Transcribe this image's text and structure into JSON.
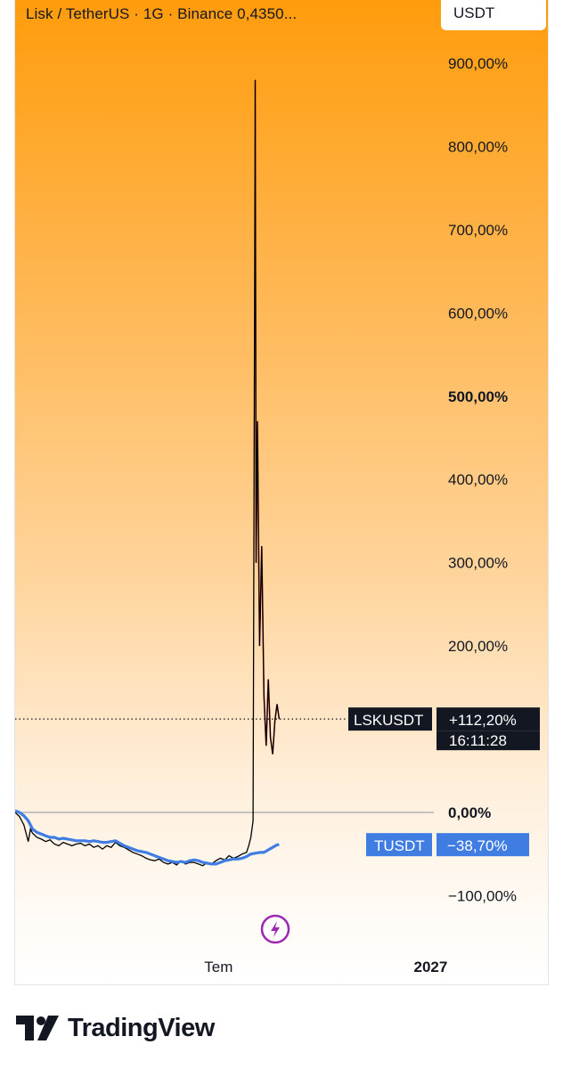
{
  "header": {
    "symbol_title": "Lisk / TetherUS · 1G · Binance  0,4350...",
    "currency": "USDT"
  },
  "footer": {
    "brand": "TradingView"
  },
  "chart_data": {
    "type": "line",
    "title": "Lisk / TetherUS · 1G · Binance",
    "y_unit": "%",
    "ylim": [
      -140,
      940
    ],
    "y_ticks": [
      {
        "value": 900,
        "label": "900,00%"
      },
      {
        "value": 800,
        "label": "800,00%"
      },
      {
        "value": 700,
        "label": "700,00%"
      },
      {
        "value": 600,
        "label": "600,00%"
      },
      {
        "value": 500,
        "label": "500,00%",
        "bold": true
      },
      {
        "value": 400,
        "label": "400,00%"
      },
      {
        "value": 300,
        "label": "300,00%"
      },
      {
        "value": 200,
        "label": "200,00%"
      },
      {
        "value": 0,
        "label": "0,00%",
        "bold": true
      },
      {
        "value": -100,
        "label": "−100,00%"
      }
    ],
    "x_ticks": [
      {
        "value": 0.47,
        "label": "Tem"
      },
      {
        "value": 0.95,
        "label": "2027",
        "bold": true
      }
    ],
    "zero_line": 0,
    "grid": false,
    "series": [
      {
        "name": "LSKUSDT",
        "color": "#000000",
        "last_value_label": "+112,20%",
        "time_label": "16:11:28",
        "last_value": 112.2,
        "points": [
          [
            0.0,
            0
          ],
          [
            0.01,
            -5
          ],
          [
            0.02,
            -15
          ],
          [
            0.03,
            -35
          ],
          [
            0.035,
            -20
          ],
          [
            0.04,
            -25
          ],
          [
            0.05,
            -30
          ],
          [
            0.06,
            -32
          ],
          [
            0.07,
            -35
          ],
          [
            0.08,
            -33
          ],
          [
            0.09,
            -38
          ],
          [
            0.1,
            -40
          ],
          [
            0.11,
            -36
          ],
          [
            0.12,
            -38
          ],
          [
            0.13,
            -40
          ],
          [
            0.14,
            -38
          ],
          [
            0.15,
            -37
          ],
          [
            0.16,
            -40
          ],
          [
            0.17,
            -38
          ],
          [
            0.18,
            -42
          ],
          [
            0.19,
            -40
          ],
          [
            0.2,
            -44
          ],
          [
            0.21,
            -40
          ],
          [
            0.22,
            -42
          ],
          [
            0.23,
            -36
          ],
          [
            0.24,
            -40
          ],
          [
            0.25,
            -42
          ],
          [
            0.26,
            -45
          ],
          [
            0.27,
            -48
          ],
          [
            0.28,
            -50
          ],
          [
            0.29,
            -52
          ],
          [
            0.3,
            -55
          ],
          [
            0.31,
            -57
          ],
          [
            0.32,
            -58
          ],
          [
            0.33,
            -56
          ],
          [
            0.34,
            -60
          ],
          [
            0.35,
            -62
          ],
          [
            0.36,
            -60
          ],
          [
            0.37,
            -63
          ],
          [
            0.38,
            -58
          ],
          [
            0.39,
            -62
          ],
          [
            0.4,
            -60
          ],
          [
            0.41,
            -60
          ],
          [
            0.42,
            -62
          ],
          [
            0.43,
            -64
          ],
          [
            0.44,
            -60
          ],
          [
            0.45,
            -62
          ],
          [
            0.46,
            -58
          ],
          [
            0.47,
            -55
          ],
          [
            0.48,
            -57
          ],
          [
            0.49,
            -52
          ],
          [
            0.5,
            -55
          ],
          [
            0.51,
            -53
          ],
          [
            0.52,
            -50
          ],
          [
            0.53,
            -48
          ],
          [
            0.535,
            -40
          ],
          [
            0.54,
            -30
          ],
          [
            0.545,
            -10
          ],
          [
            0.55,
            880
          ],
          [
            0.552,
            300
          ],
          [
            0.555,
            470
          ],
          [
            0.56,
            200
          ],
          [
            0.565,
            320
          ],
          [
            0.57,
            140
          ],
          [
            0.575,
            80
          ],
          [
            0.58,
            160
          ],
          [
            0.585,
            90
          ],
          [
            0.59,
            70
          ],
          [
            0.595,
            110
          ],
          [
            0.6,
            130
          ],
          [
            0.605,
            112.2
          ]
        ]
      },
      {
        "name": "TUSDT",
        "color": "#3f7de3",
        "last_value_label": "−38,70%",
        "last_value": -38.7,
        "points": [
          [
            0.0,
            2
          ],
          [
            0.01,
            0
          ],
          [
            0.02,
            -4
          ],
          [
            0.03,
            -10
          ],
          [
            0.04,
            -20
          ],
          [
            0.05,
            -24
          ],
          [
            0.06,
            -26
          ],
          [
            0.07,
            -28
          ],
          [
            0.08,
            -30
          ],
          [
            0.09,
            -30
          ],
          [
            0.1,
            -32
          ],
          [
            0.11,
            -31
          ],
          [
            0.12,
            -32
          ],
          [
            0.13,
            -33
          ],
          [
            0.14,
            -34
          ],
          [
            0.15,
            -34
          ],
          [
            0.16,
            -34
          ],
          [
            0.17,
            -35
          ],
          [
            0.18,
            -34
          ],
          [
            0.19,
            -35
          ],
          [
            0.2,
            -36
          ],
          [
            0.21,
            -36
          ],
          [
            0.22,
            -35
          ],
          [
            0.23,
            -34
          ],
          [
            0.24,
            -37
          ],
          [
            0.25,
            -40
          ],
          [
            0.26,
            -42
          ],
          [
            0.27,
            -44
          ],
          [
            0.28,
            -46
          ],
          [
            0.29,
            -47
          ],
          [
            0.3,
            -48
          ],
          [
            0.31,
            -50
          ],
          [
            0.32,
            -52
          ],
          [
            0.33,
            -54
          ],
          [
            0.34,
            -56
          ],
          [
            0.35,
            -58
          ],
          [
            0.36,
            -59
          ],
          [
            0.37,
            -60
          ],
          [
            0.38,
            -59
          ],
          [
            0.39,
            -60
          ],
          [
            0.4,
            -58
          ],
          [
            0.41,
            -57
          ],
          [
            0.42,
            -58
          ],
          [
            0.43,
            -60
          ],
          [
            0.44,
            -61
          ],
          [
            0.45,
            -62
          ],
          [
            0.46,
            -62
          ],
          [
            0.47,
            -60
          ],
          [
            0.48,
            -58
          ],
          [
            0.49,
            -57
          ],
          [
            0.5,
            -56
          ],
          [
            0.51,
            -56
          ],
          [
            0.52,
            -55
          ],
          [
            0.53,
            -53
          ],
          [
            0.54,
            -50
          ],
          [
            0.55,
            -49
          ],
          [
            0.56,
            -48
          ],
          [
            0.57,
            -48
          ],
          [
            0.58,
            -45
          ],
          [
            0.59,
            -42
          ],
          [
            0.6,
            -39
          ],
          [
            0.605,
            -38.7
          ]
        ]
      }
    ],
    "legend": [
      {
        "label": "LSKUSDT",
        "placement": "right"
      },
      {
        "label": "TUSDT",
        "placement": "right"
      }
    ]
  }
}
